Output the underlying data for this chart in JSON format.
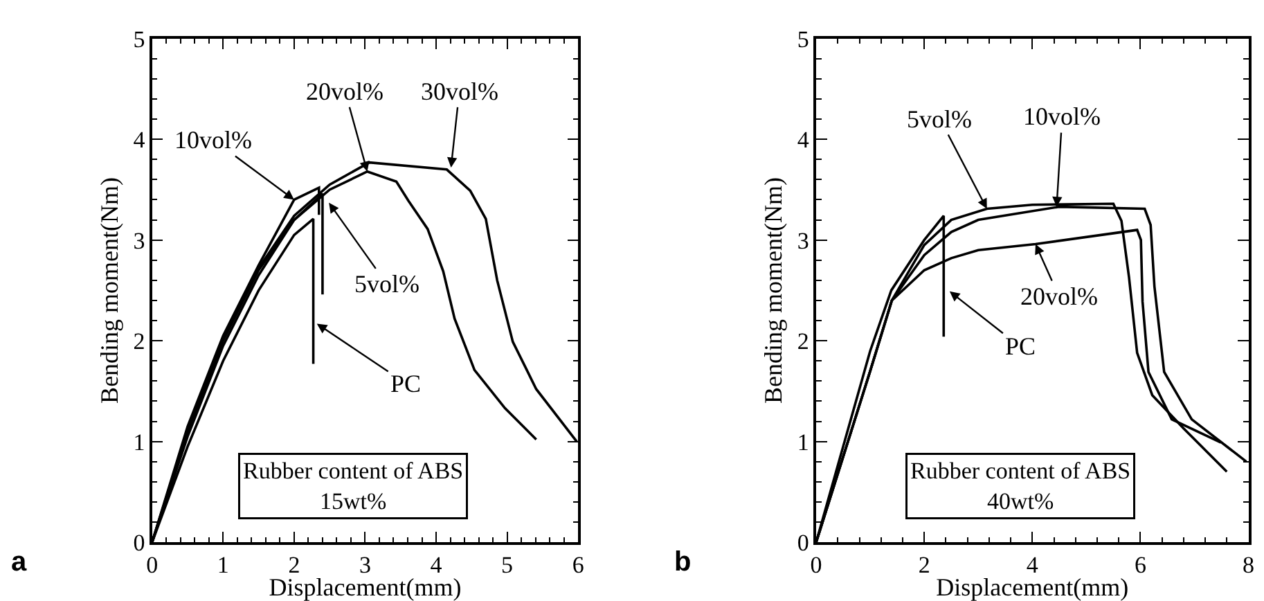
{
  "chart_data": [
    {
      "type": "line",
      "xlabel": "Displacement(mm)",
      "ylabel": "Bending moment(Nm)",
      "xlim": [
        0,
        6
      ],
      "ylim": [
        0,
        5
      ],
      "xticks": [
        0,
        1,
        2,
        3,
        4,
        5,
        6
      ],
      "yticks": [
        0,
        1,
        2,
        3,
        4,
        5
      ],
      "series": [
        {
          "color": "#000000",
          "x": [
            0,
            0.5,
            1,
            1.5,
            2,
            2.27,
            2.27
          ],
          "values": [
            0,
            0.95,
            1.8,
            2.5,
            3.05,
            3.21,
            1.77
          ]
        },
        {
          "color": "#000000",
          "x": [
            0,
            0.5,
            1,
            1.5,
            2,
            2.4,
            2.4
          ],
          "values": [
            0,
            1.05,
            1.95,
            2.65,
            3.2,
            3.46,
            2.46
          ]
        },
        {
          "color": "#000000",
          "x": [
            0,
            0.5,
            1,
            1.5,
            2,
            2.35,
            2.35
          ],
          "values": [
            0,
            1.15,
            2.05,
            2.75,
            3.4,
            3.52,
            3.25
          ]
        },
        {
          "color": "#000000",
          "x": [
            0,
            0.5,
            1,
            1.5,
            2,
            2.5,
            3.03,
            3.44,
            3.61,
            3.88,
            4.1,
            4.26,
            4.54,
            4.97,
            5.41
          ],
          "values": [
            0,
            1.1,
            2.0,
            2.7,
            3.2,
            3.5,
            3.68,
            3.58,
            3.39,
            3.11,
            2.69,
            2.22,
            1.71,
            1.33,
            1.02
          ]
        },
        {
          "color": "#000000",
          "x": [
            0,
            0.5,
            1,
            1.5,
            2,
            2.5,
            3.06,
            4.15,
            4.48,
            4.7,
            4.86,
            5.08,
            5.41,
            5.98
          ],
          "values": [
            0,
            1.12,
            2.02,
            2.72,
            3.24,
            3.55,
            3.77,
            3.7,
            3.49,
            3.21,
            2.6,
            1.99,
            1.52,
            1.0
          ]
        }
      ],
      "annotations": [
        "a",
        "Rubber content of ABS\n15wt%",
        {
          "text": "10vol%",
          "x": 2,
          "y": 3.4
        },
        {
          "text": "20vol%",
          "x": 3.03,
          "y": 3.68
        },
        {
          "text": "30vol%",
          "x": 4.21,
          "y": 3.72
        },
        {
          "text": "5vol%",
          "x": 2.49,
          "y": 3.37
        },
        {
          "text": "PC",
          "x": 2.32,
          "y": 2.17
        }
      ]
    },
    {
      "type": "line",
      "xlabel": "Displacement(mm)",
      "ylabel": "Bending moment(Nm)",
      "xlim": [
        0,
        8
      ],
      "ylim": [
        0,
        5
      ],
      "xticks": [
        0,
        2,
        4,
        6,
        8
      ],
      "yticks": [
        0,
        1,
        2,
        3,
        4,
        5
      ],
      "series": [
        {
          "color": "#000000",
          "x": [
            0,
            0.5,
            1,
            1.39,
            2,
            2.36,
            2.36
          ],
          "values": [
            0,
            0.95,
            1.9,
            2.5,
            3.0,
            3.24,
            2.04
          ]
        },
        {
          "color": "#000000",
          "x": [
            0,
            0.5,
            1,
            1.4,
            2,
            2.5,
            3.16,
            4,
            5.5,
            5.65,
            5.79,
            5.94,
            6.22,
            6.8,
            7.6
          ],
          "values": [
            0,
            0.85,
            1.7,
            2.4,
            2.95,
            3.2,
            3.31,
            3.35,
            3.36,
            3.19,
            2.63,
            1.88,
            1.46,
            1.13,
            0.7
          ]
        },
        {
          "color": "#000000",
          "x": [
            0,
            0.5,
            1,
            1.4,
            2,
            2.5,
            3,
            4.49,
            6.08,
            6.19,
            6.26,
            6.44,
            6.95,
            7.96
          ],
          "values": [
            0,
            0.85,
            1.7,
            2.4,
            2.85,
            3.08,
            3.2,
            3.33,
            3.31,
            3.15,
            2.54,
            1.69,
            1.22,
            0.8
          ]
        },
        {
          "color": "#000000",
          "x": [
            0,
            0.5,
            1,
            1.4,
            2,
            2.5,
            3,
            4.06,
            5.94,
            6.01,
            6.04,
            6.15,
            6.58,
            7.49
          ],
          "values": [
            0,
            0.85,
            1.7,
            2.4,
            2.7,
            2.82,
            2.9,
            2.96,
            3.1,
            3.0,
            2.39,
            1.69,
            1.22,
            0.99
          ]
        }
      ],
      "annotations": [
        "b",
        "Rubber content of ABS\n40wt%",
        {
          "text": "5vol%",
          "x": 3.16,
          "y": 3.31
        },
        {
          "text": "10vol%",
          "x": 4.45,
          "y": 3.33
        },
        {
          "text": "20vol%",
          "x": 4.06,
          "y": 2.96
        },
        {
          "text": "PC",
          "x": 2.47,
          "y": 2.49
        }
      ]
    }
  ]
}
